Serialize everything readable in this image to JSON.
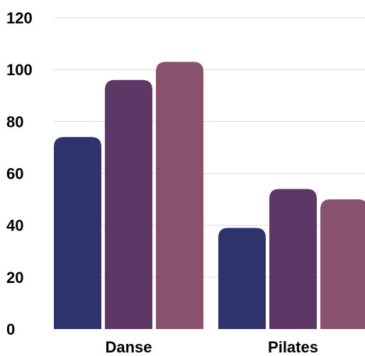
{
  "chart_data": {
    "type": "bar",
    "categories": [
      "Danse",
      "Pilates"
    ],
    "series": [
      {
        "values": [
          74,
          39
        ],
        "color": "#2f336b"
      },
      {
        "values": [
          96,
          54
        ],
        "color": "#5d3766"
      },
      {
        "values": [
          103,
          50
        ],
        "color": "#88526f"
      }
    ],
    "ylim": [
      0,
      120
    ],
    "yticks": [
      "0",
      "20",
      "40",
      "60",
      "80",
      "100",
      "120"
    ],
    "grid": true,
    "legend": "none"
  }
}
